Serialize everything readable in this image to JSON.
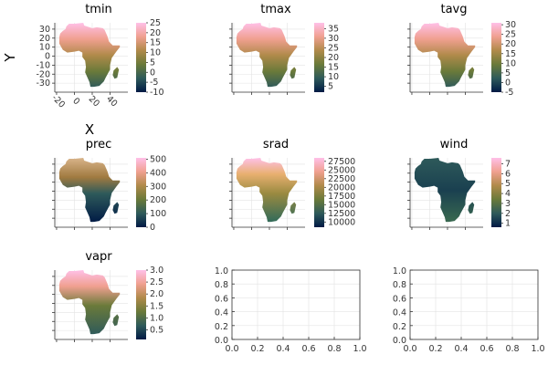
{
  "figure": {
    "xlabel": "X",
    "ylabel": "Y"
  },
  "chart_data": [
    {
      "type": "heatmap",
      "title": "tmin",
      "xticks": [
        "-20",
        "0",
        "20",
        "40"
      ],
      "yticks": [
        "30",
        "20",
        "10",
        "0",
        "-10",
        "-20",
        "-30"
      ],
      "show_ticklabels": true,
      "colorbar_ticks": [
        "25",
        "20",
        "15",
        "10",
        "5",
        "0",
        "-5",
        "-10"
      ],
      "colorbar_range": [
        -10,
        25
      ],
      "pattern": "temp"
    },
    {
      "type": "heatmap",
      "title": "tmax",
      "xticks": [],
      "yticks": [],
      "show_ticklabels": false,
      "colorbar_ticks": [
        "35",
        "30",
        "25",
        "20",
        "15",
        "10",
        "5"
      ],
      "colorbar_range": [
        2,
        38
      ],
      "pattern": "temp"
    },
    {
      "type": "heatmap",
      "title": "tavg",
      "xticks": [],
      "yticks": [],
      "show_ticklabels": false,
      "colorbar_ticks": [
        "30",
        "25",
        "20",
        "15",
        "10",
        "5",
        "0",
        "-5"
      ],
      "colorbar_range": [
        -5,
        31
      ],
      "pattern": "temp"
    },
    {
      "type": "heatmap",
      "title": "prec",
      "xticks": [],
      "yticks": [],
      "show_ticklabels": false,
      "colorbar_ticks": [
        "500",
        "400",
        "300",
        "200",
        "100",
        "0"
      ],
      "colorbar_range": [
        0,
        510
      ],
      "pattern": "prec"
    },
    {
      "type": "heatmap",
      "title": "srad",
      "xticks": [],
      "yticks": [],
      "show_ticklabels": false,
      "colorbar_ticks": [
        "27500",
        "25000",
        "22500",
        "20000",
        "17500",
        "15000",
        "12500",
        "10000"
      ],
      "colorbar_range": [
        8500,
        28500
      ],
      "pattern": "srad"
    },
    {
      "type": "heatmap",
      "title": "wind",
      "xticks": [],
      "yticks": [],
      "show_ticklabels": false,
      "colorbar_ticks": [
        "7",
        "6",
        "5",
        "4",
        "3",
        "2",
        "1"
      ],
      "colorbar_range": [
        0.6,
        7.6
      ],
      "pattern": "wind"
    },
    {
      "type": "heatmap",
      "title": "vapr",
      "xticks": [],
      "yticks": [],
      "show_ticklabels": false,
      "colorbar_ticks": [
        "3.0",
        "2.5",
        "2.0",
        "1.5",
        "1.0",
        "0.5"
      ],
      "colorbar_range": [
        0.1,
        3.0
      ],
      "pattern": "vapr"
    },
    {
      "type": "empty",
      "xticks": [
        "0.0",
        "0.2",
        "0.4",
        "0.6",
        "0.8",
        "1.0"
      ],
      "yticks": [
        "0.0",
        "0.2",
        "0.4",
        "0.6",
        "0.8",
        "1.0"
      ],
      "xlim": [
        0,
        1
      ],
      "ylim": [
        0,
        1
      ]
    },
    {
      "type": "empty",
      "xticks": [
        "0.0",
        "0.2",
        "0.4",
        "0.6",
        "0.8",
        "1.0"
      ],
      "yticks": [
        "0.0",
        "0.2",
        "0.4",
        "0.6",
        "0.8",
        "1.0"
      ],
      "xlim": [
        0,
        1
      ],
      "ylim": [
        0,
        1
      ]
    }
  ],
  "colors": {
    "cmap": [
      "#001a45",
      "#2e5a5a",
      "#6a7a3a",
      "#b08a4a",
      "#f0a090",
      "#ffc0e8"
    ],
    "ocean": "#ffffff"
  }
}
